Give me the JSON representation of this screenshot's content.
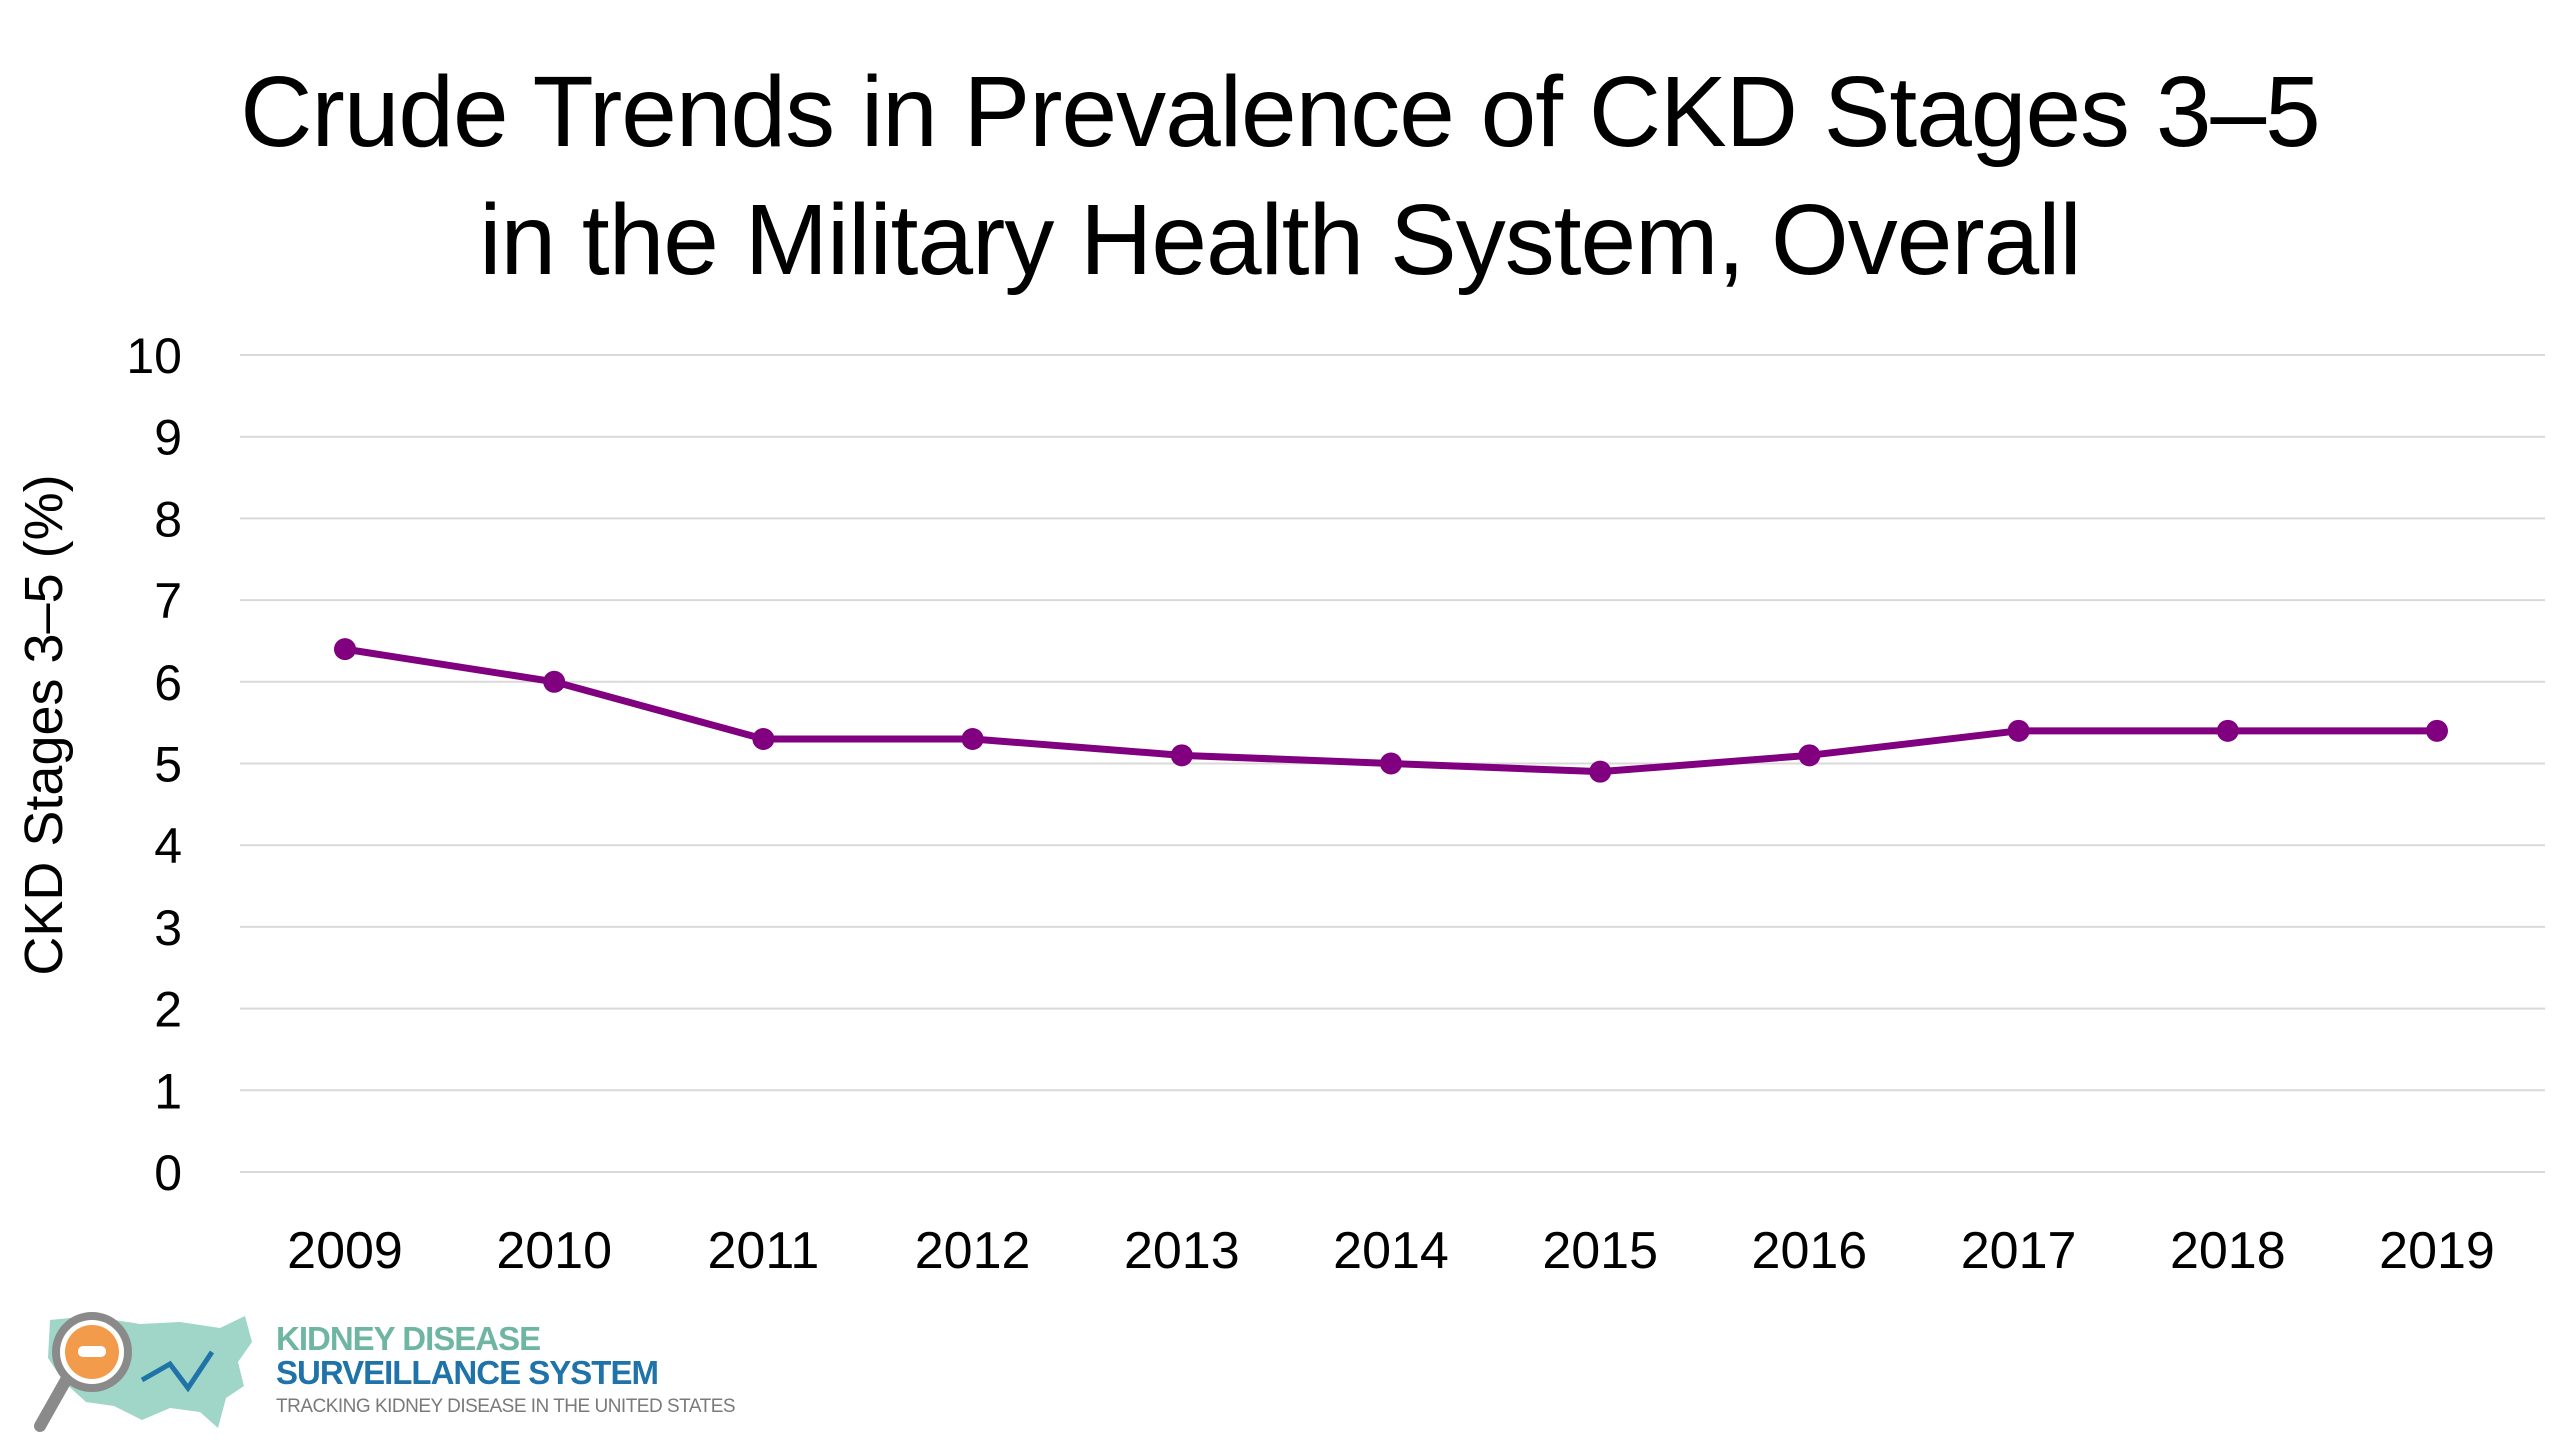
{
  "title": {
    "line1": "Crude Trends in Prevalence of CKD Stages 3–5",
    "line2": "in the Military Health System, Overall"
  },
  "chart_data": {
    "type": "line",
    "title": "Crude Trends in Prevalence of CKD Stages 3–5 in the Military Health System, Overall",
    "xlabel": "",
    "ylabel": "CKD Stages 3–5 (%)",
    "categories": [
      "2009",
      "2010",
      "2011",
      "2012",
      "2013",
      "2014",
      "2015",
      "2016",
      "2017",
      "2018",
      "2019"
    ],
    "series": [
      {
        "values": [
          6.4,
          6.0,
          5.3,
          5.3,
          5.1,
          5.0,
          4.9,
          5.1,
          5.4,
          5.4,
          5.4
        ],
        "color": "#800080"
      }
    ],
    "ylim": [
      0,
      10
    ],
    "yticks": [
      "0",
      "1",
      "2",
      "3",
      "4",
      "5",
      "6",
      "7",
      "8",
      "9",
      "10"
    ],
    "grid": true,
    "legend": "none",
    "colors": {
      "line": "#800080",
      "gridline": "#d9d9d9"
    }
  },
  "logo": {
    "line1": "KIDNEY DISEASE",
    "line2": "SURVEILLANCE SYSTEM",
    "line3": "TRACKING KIDNEY DISEASE IN THE UNITED STATES",
    "icon": "magnifier-us-map-icon"
  }
}
